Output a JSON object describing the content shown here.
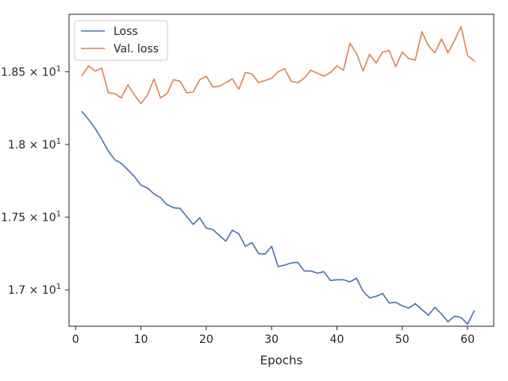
{
  "chart_data": {
    "type": "line",
    "title": "",
    "xlabel": "Epochs",
    "ylabel": "",
    "xlim": [
      -1,
      64
    ],
    "ylim": [
      16.75,
      18.895
    ],
    "x_ticks": [
      0,
      10,
      20,
      30,
      40,
      50,
      60
    ],
    "x_tick_labels": [
      "0",
      "10",
      "20",
      "30",
      "40",
      "50",
      "60"
    ],
    "y_ticks": [
      17.0,
      17.5,
      18.0,
      18.5
    ],
    "y_tick_labels": [
      {
        "mantissa": "1.7",
        "exp": "1"
      },
      {
        "mantissa": "1.75",
        "exp": "1"
      },
      {
        "mantissa": "1.8",
        "exp": "1"
      },
      {
        "mantissa": "1.85",
        "exp": "1"
      }
    ],
    "grid": false,
    "legend_position": "top-left",
    "x": [
      1,
      2,
      3,
      4,
      5,
      6,
      7,
      8,
      9,
      10,
      11,
      12,
      13,
      14,
      15,
      16,
      17,
      18,
      19,
      20,
      21,
      22,
      23,
      24,
      25,
      26,
      27,
      28,
      29,
      30,
      31,
      32,
      33,
      34,
      35,
      36,
      37,
      38,
      39,
      40,
      41,
      42,
      43,
      44,
      45,
      46,
      47,
      48,
      49,
      50,
      51,
      52,
      53,
      54,
      55,
      56,
      57,
      58,
      59,
      60,
      61
    ],
    "series": [
      {
        "name": "Loss",
        "color": "#4c72b0",
        "values": [
          18.225,
          18.17,
          18.11,
          18.035,
          17.955,
          17.895,
          17.87,
          17.825,
          17.78,
          17.72,
          17.7,
          17.66,
          17.635,
          17.585,
          17.565,
          17.56,
          17.505,
          17.45,
          17.495,
          17.425,
          17.415,
          17.375,
          17.335,
          17.41,
          17.385,
          17.3,
          17.325,
          17.25,
          17.245,
          17.3,
          17.16,
          17.17,
          17.185,
          17.19,
          17.13,
          17.13,
          17.115,
          17.125,
          17.065,
          17.07,
          17.07,
          17.055,
          17.08,
          16.99,
          16.945,
          16.955,
          16.975,
          16.91,
          16.915,
          16.89,
          16.875,
          16.905,
          16.865,
          16.825,
          16.88,
          16.835,
          16.78,
          16.82,
          16.81,
          16.765,
          16.855
        ]
      },
      {
        "name": "Val. loss",
        "color": "#dd8452",
        "values": [
          18.475,
          18.54,
          18.505,
          18.525,
          18.355,
          18.35,
          18.32,
          18.41,
          18.34,
          18.28,
          18.34,
          18.45,
          18.32,
          18.35,
          18.445,
          18.435,
          18.355,
          18.36,
          18.445,
          18.47,
          18.395,
          18.4,
          18.425,
          18.45,
          18.38,
          18.495,
          18.485,
          18.425,
          18.44,
          18.455,
          18.5,
          18.52,
          18.435,
          18.425,
          18.455,
          18.51,
          18.49,
          18.47,
          18.495,
          18.54,
          18.51,
          18.695,
          18.625,
          18.505,
          18.62,
          18.56,
          18.635,
          18.645,
          18.535,
          18.635,
          18.59,
          18.58,
          18.775,
          18.68,
          18.63,
          18.725,
          18.63,
          18.715,
          18.81,
          18.61,
          18.575
        ]
      }
    ]
  }
}
